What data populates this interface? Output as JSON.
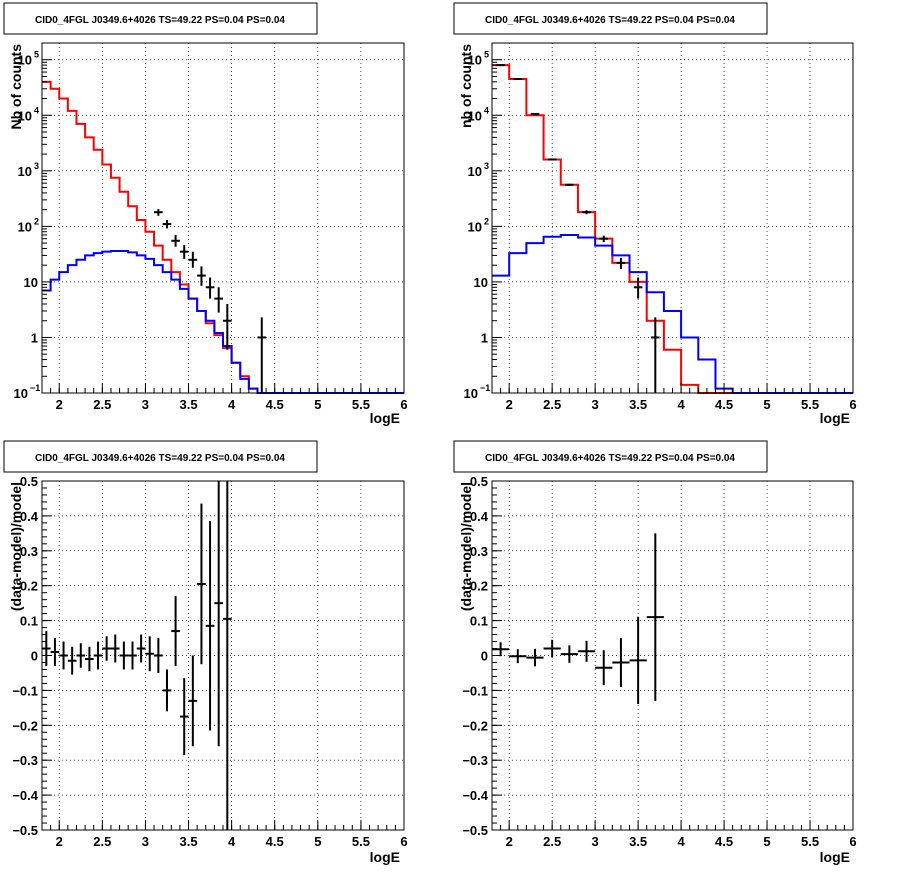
{
  "colors": {
    "data": "#000000",
    "model_total": "#ff0000",
    "model_component": "#0000ff",
    "grid": "#000000"
  },
  "chart_data": [
    {
      "type": "line",
      "title": "CID0_4FGL J0349.6+4026 TS=49.22 PS=0.04 PS=0.04",
      "xlabel": "logE",
      "ylabel": "Nb of counts",
      "yscale": "log",
      "xlim": [
        1.8,
        6.0
      ],
      "ylim": [
        0.1,
        200000
      ],
      "xticks": [
        "2",
        "2.5",
        "3",
        "3.5",
        "4",
        "4.5",
        "5",
        "5.5",
        "6"
      ],
      "yticks": [
        "10^-1",
        "1",
        "10",
        "10^2",
        "10^3",
        "10^4",
        "10^5"
      ],
      "grid": true,
      "bin_edges": [
        1.8,
        1.9,
        2.0,
        2.1,
        2.2,
        2.3,
        2.4,
        2.5,
        2.6,
        2.7,
        2.8,
        2.9,
        3.0,
        3.1,
        3.2,
        3.3,
        3.4,
        3.5,
        3.6,
        3.7,
        3.8,
        3.9,
        4.0,
        4.1,
        4.2,
        4.3,
        4.4,
        4.5,
        4.6,
        4.7,
        4.8,
        4.9,
        5.0,
        5.1,
        5.2,
        5.3,
        5.4,
        5.5,
        5.6,
        5.7,
        5.8,
        5.9,
        6.0
      ],
      "series": [
        {
          "style": "step",
          "color": "red",
          "values": [
            40000,
            30000,
            20000,
            12000,
            7000,
            4000,
            2400,
            1300,
            750,
            420,
            230,
            130,
            80,
            45,
            25,
            15,
            9,
            5,
            3,
            1.8,
            1.1,
            0.65,
            0.35,
            0.2,
            0.12,
            0.1,
            0.1,
            0.1,
            0.1,
            0.1,
            0.1,
            0.1,
            0.1,
            0.1,
            0.1,
            0.1,
            0.1,
            0.1,
            0.1,
            0.1,
            0.1,
            0.1
          ]
        },
        {
          "style": "step",
          "color": "blue",
          "values": [
            7,
            11,
            15,
            20,
            25,
            30,
            33,
            35,
            36,
            36,
            34,
            30,
            26,
            20,
            15,
            11,
            7.5,
            5,
            3,
            2,
            1.2,
            0.7,
            0.35,
            0.18,
            0.12,
            0.1,
            0.1,
            0.1,
            0.1,
            0.1,
            0.1,
            0.1,
            0.1,
            0.1,
            0.1,
            0.1,
            0.1,
            0.1,
            0.1,
            0.1,
            0.1,
            0.1
          ]
        },
        {
          "style": "errorbar",
          "color": "black",
          "points": [
            {
              "x": 3.15,
              "y": 180,
              "lo": 155,
              "hi": 205
            },
            {
              "x": 3.25,
              "y": 110,
              "lo": 92,
              "hi": 130
            },
            {
              "x": 3.35,
              "y": 55,
              "lo": 43,
              "hi": 70
            },
            {
              "x": 3.45,
              "y": 35,
              "lo": 26,
              "hi": 46
            },
            {
              "x": 3.55,
              "y": 25,
              "lo": 18,
              "hi": 35
            },
            {
              "x": 3.65,
              "y": 13,
              "lo": 8.5,
              "hi": 19
            },
            {
              "x": 3.75,
              "y": 8,
              "lo": 5,
              "hi": 12
            },
            {
              "x": 3.85,
              "y": 5,
              "lo": 2.8,
              "hi": 8
            },
            {
              "x": 3.95,
              "y": 2,
              "lo": 0.6,
              "hi": 4
            },
            {
              "x": 4.35,
              "y": 1,
              "lo": 0.1,
              "hi": 2.3
            }
          ]
        }
      ]
    },
    {
      "type": "line",
      "title": "CID0_4FGL J0349.6+4026 TS=49.22 PS=0.04 PS=0.04",
      "xlabel": "logE",
      "ylabel": "nb of counts",
      "yscale": "log",
      "xlim": [
        1.8,
        6.0
      ],
      "ylim": [
        0.1,
        200000
      ],
      "xticks": [
        "2",
        "2.5",
        "3",
        "3.5",
        "4",
        "4.5",
        "5",
        "5.5",
        "6"
      ],
      "yticks": [
        "10^-1",
        "1",
        "10",
        "10^2",
        "10^3",
        "10^4",
        "10^5"
      ],
      "grid": true,
      "bin_edges": [
        1.8,
        2.0,
        2.2,
        2.4,
        2.6,
        2.8,
        3.0,
        3.2,
        3.4,
        3.6,
        3.8,
        4.0,
        4.2,
        4.4,
        4.6,
        4.8,
        5.0,
        5.2,
        5.4,
        5.6,
        5.8,
        6.0
      ],
      "series": [
        {
          "style": "step",
          "color": "red",
          "values": [
            80000,
            45000,
            10000,
            1600,
            560,
            180,
            60,
            22,
            10,
            2,
            0.6,
            0.14,
            0.1,
            0.1,
            0.1,
            0.1,
            0.1,
            0.1,
            0.1,
            0.1,
            0.1
          ]
        },
        {
          "style": "step",
          "color": "blue",
          "values": [
            13,
            33,
            50,
            65,
            70,
            63,
            45,
            30,
            15,
            6.5,
            3,
            1,
            0.4,
            0.12,
            0.1,
            0.1,
            0.1,
            0.1,
            0.1,
            0.1,
            0.1
          ]
        },
        {
          "style": "errorbar",
          "color": "black",
          "points": [
            {
              "x": 1.9,
              "y": 80000,
              "lo": 79000,
              "hi": 81000
            },
            {
              "x": 2.1,
              "y": 45000,
              "lo": 44500,
              "hi": 45500
            },
            {
              "x": 2.3,
              "y": 10500,
              "lo": 10200,
              "hi": 10800
            },
            {
              "x": 2.5,
              "y": 1600,
              "lo": 1560,
              "hi": 1640
            },
            {
              "x": 2.7,
              "y": 560,
              "lo": 535,
              "hi": 585
            },
            {
              "x": 2.9,
              "y": 180,
              "lo": 165,
              "hi": 195
            },
            {
              "x": 3.1,
              "y": 60,
              "lo": 52,
              "hi": 68
            },
            {
              "x": 3.3,
              "y": 22,
              "lo": 17,
              "hi": 27
            },
            {
              "x": 3.5,
              "y": 8,
              "lo": 5,
              "hi": 12
            },
            {
              "x": 3.7,
              "y": 1,
              "lo": 0.1,
              "hi": 2.3
            }
          ]
        }
      ]
    },
    {
      "type": "scatter",
      "title": "CID0_4FGL J0349.6+4026 TS=49.22 PS=0.04 PS=0.04",
      "xlabel": "logE",
      "ylabel": "(data-model)/model",
      "xlim": [
        1.8,
        6.0
      ],
      "ylim": [
        -0.5,
        0.5
      ],
      "xticks": [
        "2",
        "2.5",
        "3",
        "3.5",
        "4",
        "4.5",
        "5",
        "5.5",
        "6"
      ],
      "yticks": [
        "-0.5",
        "-0.4",
        "-0.3",
        "-0.2",
        "-0.1",
        "0",
        "0.1",
        "0.2",
        "0.3",
        "0.4",
        "0.5"
      ],
      "grid": true,
      "series": [
        {
          "style": "errorbar",
          "color": "black",
          "xerr": 0.05,
          "points": [
            {
              "x": 1.85,
              "y": 0.02,
              "err": 0.05
            },
            {
              "x": 1.95,
              "y": 0.01,
              "err": 0.04
            },
            {
              "x": 2.05,
              "y": 0.0,
              "err": 0.04
            },
            {
              "x": 2.15,
              "y": -0.015,
              "err": 0.04
            },
            {
              "x": 2.25,
              "y": 0.0,
              "err": 0.035
            },
            {
              "x": 2.35,
              "y": -0.01,
              "err": 0.035
            },
            {
              "x": 2.45,
              "y": 0.0,
              "err": 0.04
            },
            {
              "x": 2.55,
              "y": 0.02,
              "err": 0.035
            },
            {
              "x": 2.65,
              "y": 0.02,
              "err": 0.04
            },
            {
              "x": 2.75,
              "y": 0.0,
              "err": 0.04
            },
            {
              "x": 2.85,
              "y": 0.0,
              "err": 0.04
            },
            {
              "x": 2.95,
              "y": 0.02,
              "err": 0.04
            },
            {
              "x": 3.05,
              "y": 0.005,
              "err": 0.05
            },
            {
              "x": 3.15,
              "y": 0.0,
              "err": 0.05
            },
            {
              "x": 3.25,
              "y": -0.1,
              "err": 0.06
            },
            {
              "x": 3.35,
              "y": 0.07,
              "err": 0.1
            },
            {
              "x": 3.45,
              "y": -0.175,
              "err": 0.11
            },
            {
              "x": 3.55,
              "y": -0.13,
              "err": 0.13
            },
            {
              "x": 3.65,
              "y": 0.205,
              "err": 0.23
            },
            {
              "x": 3.75,
              "y": 0.085,
              "err": 0.3
            },
            {
              "x": 3.85,
              "y": 0.15,
              "err": 0.41
            },
            {
              "x": 3.95,
              "y": 0.105,
              "err": 0.9
            }
          ]
        }
      ]
    },
    {
      "type": "scatter",
      "title": "CID0_4FGL J0349.6+4026 TS=49.22 PS=0.04 PS=0.04",
      "xlabel": "logE",
      "ylabel": "(data-model)/model",
      "xlim": [
        1.8,
        6.0
      ],
      "ylim": [
        -0.5,
        0.5
      ],
      "xticks": [
        "2",
        "2.5",
        "3",
        "3.5",
        "4",
        "4.5",
        "5",
        "5.5",
        "6"
      ],
      "yticks": [
        "-0.5",
        "-0.4",
        "-0.3",
        "-0.2",
        "-0.1",
        "0",
        "0.1",
        "0.2",
        "0.3",
        "0.4",
        "0.5"
      ],
      "grid": true,
      "series": [
        {
          "style": "errorbar",
          "color": "black",
          "xerr": 0.1,
          "points": [
            {
              "x": 1.9,
              "y": 0.018,
              "err": 0.02
            },
            {
              "x": 2.1,
              "y": -0.002,
              "err": 0.02
            },
            {
              "x": 2.3,
              "y": -0.006,
              "err": 0.025
            },
            {
              "x": 2.5,
              "y": 0.02,
              "err": 0.025
            },
            {
              "x": 2.7,
              "y": 0.004,
              "err": 0.025
            },
            {
              "x": 2.9,
              "y": 0.012,
              "err": 0.03
            },
            {
              "x": 3.1,
              "y": -0.035,
              "err": 0.05
            },
            {
              "x": 3.3,
              "y": -0.02,
              "err": 0.07
            },
            {
              "x": 3.5,
              "y": -0.014,
              "err": 0.125
            },
            {
              "x": 3.7,
              "y": 0.11,
              "err": 0.24
            }
          ]
        }
      ]
    }
  ]
}
